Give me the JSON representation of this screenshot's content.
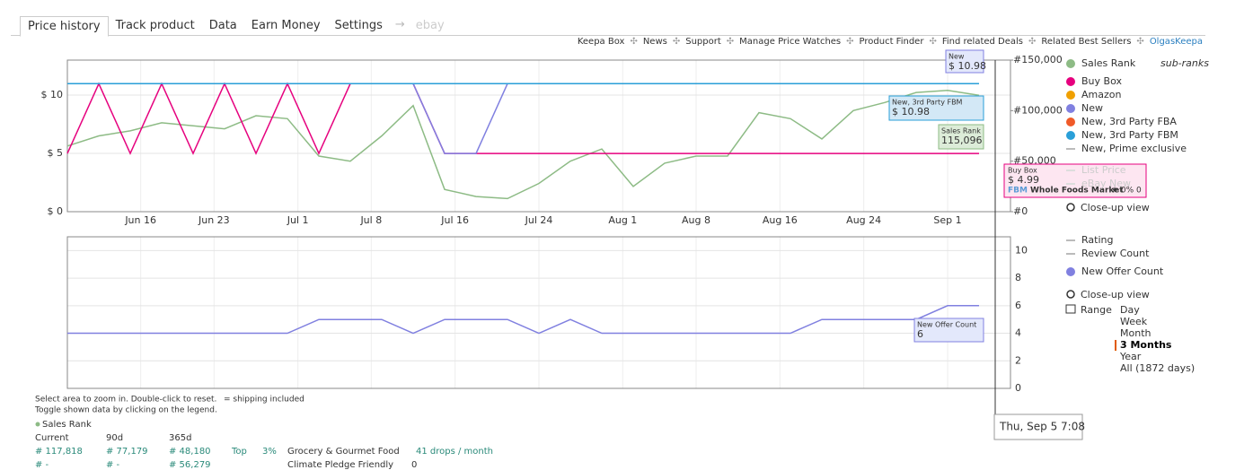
{
  "tabs": [
    "Price history",
    "Track product",
    "Data",
    "Earn Money",
    "Settings",
    "ebay"
  ],
  "links": [
    "Keepa Box",
    "News",
    "Support",
    "Manage Price Watches",
    "Product Finder",
    "Find related Deals",
    "Related Best Sellers",
    "OlgasKeepa"
  ],
  "chart_data": [
    {
      "type": "line",
      "x": [
        "Jun 9",
        "Jun 12",
        "Jun 15",
        "Jun 18",
        "Jun 21",
        "Jun 24",
        "Jun 27",
        "Jun 30",
        "Jul 3",
        "Jul 6",
        "Jul 9",
        "Jul 12",
        "Jul 15",
        "Jul 18",
        "Jul 21",
        "Jul 24",
        "Jul 27",
        "Jul 30",
        "Aug 2",
        "Aug 5",
        "Aug 8",
        "Aug 11",
        "Aug 14",
        "Aug 17",
        "Aug 20",
        "Aug 23",
        "Aug 26",
        "Aug 29",
        "Sep 1",
        "Sep 4"
      ],
      "xlim": [
        "Jun 9",
        "Sep 7"
      ],
      "xticks": [
        "Jun 16",
        "Jun 23",
        "Jul 1",
        "Jul 8",
        "Jul 16",
        "Jul 24",
        "Aug 1",
        "Aug 8",
        "Aug 16",
        "Aug 24",
        "Sep 1"
      ],
      "ylim": [
        0,
        13
      ],
      "yticks": [
        {
          "value": 0,
          "label": "$ 0"
        },
        {
          "value": 5,
          "label": "$ 5"
        },
        {
          "value": 10,
          "label": "$ 10"
        }
      ],
      "y2lim": [
        0,
        150000
      ],
      "y2ticks": [
        {
          "value": 0,
          "label": "#0"
        },
        {
          "value": 50000,
          "label": "#50,000"
        },
        {
          "value": 100000,
          "label": "#100,000"
        },
        {
          "value": 150000,
          "label": "#150,000"
        }
      ],
      "grid": true,
      "series": [
        {
          "name": "Sales Rank",
          "color": "#8dbb85",
          "axis": "y2",
          "values": [
            65000,
            75000,
            80000,
            88000,
            85000,
            82000,
            95000,
            92000,
            55000,
            50000,
            75000,
            105000,
            22000,
            15000,
            13000,
            28000,
            50000,
            62000,
            25000,
            48000,
            55000,
            55000,
            98000,
            92000,
            72000,
            100000,
            108000,
            118000,
            120000,
            115096
          ]
        },
        {
          "name": "Buy Box",
          "color": "#e6007e",
          "values": [
            4.99,
            10.98,
            4.99,
            10.98,
            4.99,
            10.98,
            4.99,
            10.98,
            4.99,
            10.98,
            10.98,
            10.98,
            4.99,
            4.99,
            4.99,
            4.99,
            4.99,
            4.99,
            4.99,
            4.99,
            4.99,
            4.99,
            4.99,
            4.99,
            4.99,
            4.99,
            4.99,
            4.99,
            4.99,
            4.99
          ]
        },
        {
          "name": "New",
          "color": "#8080e0",
          "values": [
            10.98,
            10.98,
            10.98,
            10.98,
            10.98,
            10.98,
            10.98,
            10.98,
            10.98,
            10.98,
            10.98,
            10.98,
            4.99,
            4.99,
            10.98,
            10.98,
            10.98,
            10.98,
            10.98,
            10.98,
            10.98,
            10.98,
            10.98,
            10.98,
            10.98,
            10.98,
            10.98,
            10.98,
            10.98,
            10.98
          ]
        },
        {
          "name": "New, 3rd Party FBM",
          "color": "#2a9fd8",
          "values": [
            10.98,
            10.98,
            10.98,
            10.98,
            10.98,
            10.98,
            10.98,
            10.98,
            10.98,
            10.98,
            10.98,
            10.98,
            10.98,
            10.98,
            10.98,
            10.98,
            10.98,
            10.98,
            10.98,
            10.98,
            10.98,
            10.98,
            10.98,
            10.98,
            10.98,
            10.98,
            10.98,
            10.98,
            10.98,
            10.98
          ]
        }
      ],
      "other_legend": [
        {
          "name": "Amazon",
          "color": "#f0a000"
        },
        {
          "name": "New, 3rd Party FBA",
          "color": "#f05a28"
        },
        {
          "name": "New, Prime exclusive",
          "color": "#bbbbbb"
        },
        {
          "name": "List Price",
          "color": "#dddddd"
        },
        {
          "name": "eBay New",
          "color": "#dddddd"
        }
      ],
      "sub_ranks": "sub-ranks",
      "close_up": "Close-up view",
      "annotations": [
        {
          "title": "New",
          "label": "$ 10.98"
        },
        {
          "title": "New, 3rd Party FBM",
          "label": "$ 10.98"
        },
        {
          "title": "Sales Rank",
          "label": "115,096"
        },
        {
          "title": "Buy Box",
          "label": "$ 4.99",
          "seller_type": "FBM",
          "seller": "Whole Foods Market",
          "rating": "★ 0%",
          "count": "0"
        }
      ]
    },
    {
      "type": "line",
      "x": [
        "Jun 9",
        "Jun 12",
        "Jun 15",
        "Jun 18",
        "Jun 21",
        "Jun 24",
        "Jun 27",
        "Jun 30",
        "Jul 3",
        "Jul 6",
        "Jul 9",
        "Jul 12",
        "Jul 15",
        "Jul 18",
        "Jul 21",
        "Jul 24",
        "Jul 27",
        "Jul 30",
        "Aug 2",
        "Aug 5",
        "Aug 8",
        "Aug 11",
        "Aug 14",
        "Aug 17",
        "Aug 20",
        "Aug 23",
        "Aug 26",
        "Aug 29",
        "Sep 1",
        "Sep 4"
      ],
      "xlim": [
        "Jun 9",
        "Sep 7"
      ],
      "ylim": [
        0,
        11
      ],
      "yticks": [
        0,
        2,
        4,
        6,
        8,
        10
      ],
      "grid": true,
      "series": [
        {
          "name": "New Offer Count",
          "color": "#8080e0",
          "values": [
            4,
            4,
            4,
            4,
            4,
            4,
            4,
            4,
            5,
            5,
            5,
            4,
            5,
            5,
            5,
            4,
            5,
            4,
            4,
            4,
            4,
            4,
            4,
            4,
            5,
            5,
            5,
            5,
            6,
            6
          ]
        }
      ],
      "other_legend": [
        {
          "name": "Rating",
          "color": "#bbbbbb"
        },
        {
          "name": "Review Count",
          "color": "#bbbbbb"
        }
      ],
      "close_up": "Close-up view",
      "annotations": [
        {
          "title": "New Offer Count",
          "label": "6"
        }
      ],
      "range": {
        "label": "Range",
        "options": [
          "Day",
          "Week",
          "Month",
          "3 Months",
          "Year",
          "All (1872 days)"
        ],
        "selected": 3
      }
    }
  ],
  "crosshair_label": "Thu, Sep 5 7:08",
  "notes": [
    "Select area to zoom in. Double-click to reset.",
    "= shipping included",
    "Toggle shown data by clicking on the legend."
  ],
  "sales_rank_table": {
    "title": "Sales Rank",
    "header": [
      "Current",
      "90d",
      "365d"
    ],
    "rows": [
      [
        "# 117,818",
        "# 77,179",
        "# 48,180",
        "Top",
        "3%",
        "Grocery & Gourmet Food",
        "41 drops / month"
      ],
      [
        "# -",
        "# -",
        "# 56,279",
        "Climate Pledge Friendly",
        "0"
      ]
    ]
  }
}
